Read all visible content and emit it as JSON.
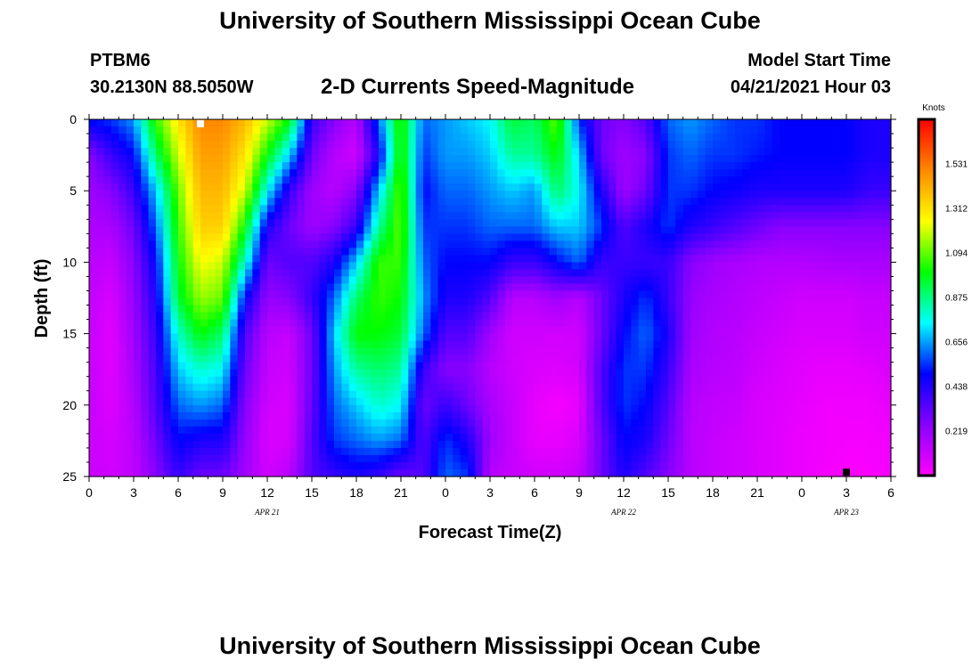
{
  "header": {
    "title": "University of Southern Mississippi Ocean Cube",
    "station": "PTBM6",
    "coords": "30.2130N  88.5050W",
    "chart_title": "2-D Currents Speed-Magnitude",
    "model_label": "Model Start Time",
    "model_time": "04/21/2021 Hour 03"
  },
  "footer": {
    "title": "University of Southern Mississippi Ocean Cube"
  },
  "chart_data": {
    "type": "heatmap",
    "title": "2-D Currents Speed-Magnitude",
    "xlabel": "Forecast Time(Z)",
    "ylabel": "Depth (ft)",
    "x_hours": [
      0,
      54
    ],
    "x_tick_labels": [
      "0",
      "3",
      "6",
      "9",
      "12",
      "15",
      "18",
      "21",
      "0",
      "3",
      "6",
      "9",
      "12",
      "15",
      "18",
      "21",
      "0",
      "3",
      "6"
    ],
    "date_labels": [
      {
        "text": "APR  21",
        "hour": 12
      },
      {
        "text": "APR  22",
        "hour": 36
      },
      {
        "text": "APR  23",
        "hour": 51
      }
    ],
    "ylim": [
      0,
      25
    ],
    "y_ticks": [
      0,
      5,
      10,
      15,
      20,
      25
    ],
    "colorbar": {
      "label": "Knots",
      "range": [
        0,
        1.75
      ],
      "ticks": [
        "1.531",
        "1.312",
        "1.094",
        "0.875",
        "0.656",
        "0.438",
        "0.219"
      ],
      "tick_values": [
        1.531,
        1.312,
        1.094,
        0.875,
        0.656,
        0.438,
        0.219
      ],
      "colors": [
        "#ff00ff",
        "#8800ff",
        "#0000ff",
        "#00ffff",
        "#00ff00",
        "#ffff00",
        "#ff8800",
        "#ff0000"
      ]
    },
    "marker_points": [
      {
        "hour": 7.5,
        "depth": 0.3,
        "color": "#ffffff"
      },
      {
        "hour": 51,
        "depth": 24.7,
        "color": "#000000"
      }
    ],
    "speed_grid": {
      "hours": [
        0,
        1.5,
        3,
        4.5,
        6,
        7.5,
        9,
        10.5,
        12,
        13.5,
        15,
        16.5,
        18,
        19.5,
        21,
        22.5,
        24,
        25.5,
        27,
        28.5,
        30,
        31.5,
        33,
        34.5,
        36,
        37.5,
        39,
        40.5,
        42,
        43.5,
        45,
        46.5,
        48,
        49.5,
        51,
        52.5,
        54
      ],
      "depths": [
        0,
        2.5,
        5,
        7.5,
        10,
        12.5,
        15,
        17.5,
        20,
        22.5,
        25
      ],
      "knots": [
        [
          0.52,
          0.25,
          0.2,
          0.17,
          0.15,
          0.13,
          0.12,
          0.12,
          0.12,
          0.11,
          0.11
        ],
        [
          0.55,
          0.4,
          0.25,
          0.18,
          0.12,
          0.08,
          0.06,
          0.06,
          0.07,
          0.09,
          0.1
        ],
        [
          0.65,
          0.5,
          0.4,
          0.3,
          0.25,
          0.22,
          0.2,
          0.18,
          0.16,
          0.14,
          0.13
        ],
        [
          1.05,
          0.9,
          0.7,
          0.6,
          0.5,
          0.45,
          0.4,
          0.37,
          0.35,
          0.3,
          0.25
        ],
        [
          1.3,
          1.2,
          1.1,
          1.05,
          1.0,
          0.95,
          0.8,
          0.7,
          0.6,
          0.5,
          0.4
        ],
        [
          1.5,
          1.45,
          1.4,
          1.35,
          1.25,
          1.15,
          1.0,
          0.8,
          0.65,
          0.45,
          0.3
        ],
        [
          1.5,
          1.45,
          1.4,
          1.35,
          1.2,
          1.1,
          0.9,
          0.75,
          0.6,
          0.45,
          0.3
        ],
        [
          1.4,
          1.3,
          1.2,
          1.0,
          0.8,
          0.5,
          0.35,
          0.3,
          0.25,
          0.22,
          0.2
        ],
        [
          1.2,
          1.0,
          0.75,
          0.45,
          0.3,
          0.22,
          0.15,
          0.12,
          0.1,
          0.08,
          0.1
        ],
        [
          1.0,
          0.7,
          0.4,
          0.3,
          0.35,
          0.25,
          0.12,
          0.1,
          0.08,
          0.09,
          0.15
        ],
        [
          0.4,
          0.3,
          0.2,
          0.2,
          0.35,
          0.4,
          0.3,
          0.3,
          0.32,
          0.35,
          0.35
        ],
        [
          0.25,
          0.15,
          0.15,
          0.25,
          0.45,
          0.6,
          0.7,
          0.65,
          0.6,
          0.55,
          0.4
        ],
        [
          0.15,
          0.1,
          0.25,
          0.4,
          0.7,
          0.9,
          1.0,
          0.85,
          0.7,
          0.6,
          0.45
        ],
        [
          0.6,
          0.45,
          0.7,
          0.85,
          1.05,
          1.05,
          1.0,
          0.9,
          0.8,
          0.65,
          0.4
        ],
        [
          1.05,
          1.05,
          1.1,
          1.1,
          1.05,
          1.0,
          0.95,
          0.85,
          0.75,
          0.6,
          0.3
        ],
        [
          0.6,
          0.55,
          0.5,
          0.55,
          0.6,
          0.65,
          0.6,
          0.4,
          0.3,
          0.35,
          0.35
        ],
        [
          0.65,
          0.65,
          0.6,
          0.55,
          0.5,
          0.45,
          0.35,
          0.25,
          0.4,
          0.55,
          0.6
        ],
        [
          0.7,
          0.65,
          0.6,
          0.55,
          0.5,
          0.45,
          0.35,
          0.25,
          0.3,
          0.45,
          0.55
        ],
        [
          0.75,
          0.7,
          0.65,
          0.6,
          0.5,
          0.35,
          0.2,
          0.15,
          0.18,
          0.2,
          0.15
        ],
        [
          0.95,
          0.85,
          0.7,
          0.6,
          0.4,
          0.15,
          0.1,
          0.1,
          0.12,
          0.12,
          0.12
        ],
        [
          0.9,
          0.85,
          0.65,
          0.6,
          0.4,
          0.15,
          0.1,
          0.08,
          0.05,
          0.05,
          0.1
        ],
        [
          1.1,
          1.0,
          0.9,
          0.7,
          0.5,
          0.2,
          0.1,
          0.07,
          0.02,
          0.05,
          0.1
        ],
        [
          0.55,
          0.7,
          0.75,
          0.7,
          0.6,
          0.15,
          0.1,
          0.09,
          0.05,
          0.08,
          0.12
        ],
        [
          0.3,
          0.3,
          0.45,
          0.55,
          0.4,
          0.3,
          0.3,
          0.35,
          0.35,
          0.3,
          0.3
        ],
        [
          0.25,
          0.2,
          0.2,
          0.35,
          0.4,
          0.45,
          0.5,
          0.55,
          0.55,
          0.5,
          0.45
        ],
        [
          0.35,
          0.25,
          0.3,
          0.45,
          0.4,
          0.55,
          0.6,
          0.55,
          0.5,
          0.45,
          0.35
        ],
        [
          0.6,
          0.55,
          0.55,
          0.55,
          0.4,
          0.4,
          0.45,
          0.4,
          0.35,
          0.3,
          0.25
        ],
        [
          0.65,
          0.6,
          0.55,
          0.45,
          0.25,
          0.22,
          0.2,
          0.18,
          0.15,
          0.15,
          0.15
        ],
        [
          0.6,
          0.55,
          0.5,
          0.4,
          0.2,
          0.18,
          0.16,
          0.15,
          0.13,
          0.12,
          0.12
        ],
        [
          0.55,
          0.55,
          0.48,
          0.35,
          0.18,
          0.16,
          0.15,
          0.14,
          0.12,
          0.1,
          0.1
        ],
        [
          0.55,
          0.52,
          0.45,
          0.3,
          0.16,
          0.14,
          0.12,
          0.1,
          0.08,
          0.08,
          0.08
        ],
        [
          0.5,
          0.5,
          0.45,
          0.25,
          0.16,
          0.12,
          0.1,
          0.08,
          0.07,
          0.06,
          0.06
        ],
        [
          0.5,
          0.5,
          0.45,
          0.25,
          0.16,
          0.1,
          0.08,
          0.06,
          0.05,
          0.04,
          0.04
        ],
        [
          0.5,
          0.5,
          0.45,
          0.25,
          0.17,
          0.1,
          0.08,
          0.05,
          0.03,
          0.03,
          0.02
        ],
        [
          0.5,
          0.5,
          0.45,
          0.25,
          0.18,
          0.1,
          0.08,
          0.05,
          0.03,
          0.02,
          0.01
        ],
        [
          0.45,
          0.45,
          0.4,
          0.25,
          0.18,
          0.12,
          0.1,
          0.06,
          0.03,
          0.02,
          0.01
        ],
        [
          0.45,
          0.45,
          0.4,
          0.25,
          0.18,
          0.12,
          0.1,
          0.08,
          0.05,
          0.03,
          0.02
        ]
      ]
    }
  }
}
